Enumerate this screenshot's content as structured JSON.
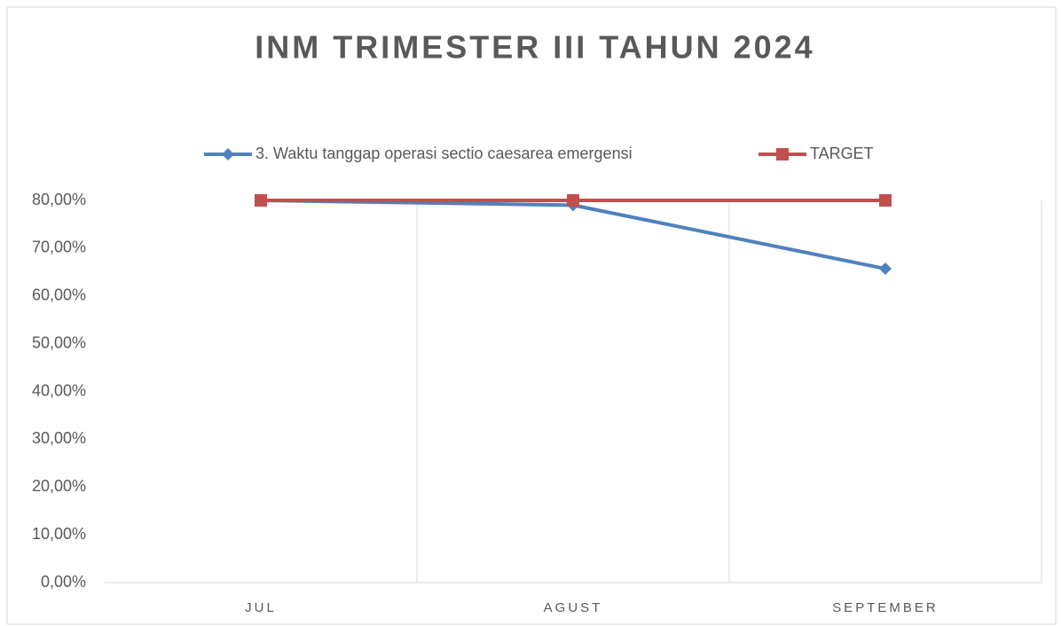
{
  "chart_data": {
    "type": "line",
    "title": "INM TRIMESTER III TAHUN 2024",
    "categories": [
      "JUL",
      "AGUST",
      "SEPTEMBER"
    ],
    "series": [
      {
        "name": "3. Waktu tanggap operasi sectio caesarea emergensi",
        "color": "#4f81bd",
        "marker": "diamond",
        "values": [
          80,
          79,
          65.7
        ]
      },
      {
        "name": "TARGET",
        "color": "#c0504d",
        "marker": "square",
        "values": [
          80,
          80,
          80
        ]
      }
    ],
    "ylim": [
      0,
      80
    ],
    "yticks": [
      {
        "value": 0,
        "label": "0,00%"
      },
      {
        "value": 10,
        "label": "10,00%"
      },
      {
        "value": 20,
        "label": "20,00%"
      },
      {
        "value": 30,
        "label": "30,00%"
      },
      {
        "value": 40,
        "label": "40,00%"
      },
      {
        "value": 50,
        "label": "50,00%"
      },
      {
        "value": 60,
        "label": "60,00%"
      },
      {
        "value": 70,
        "label": "70,00%"
      },
      {
        "value": 80,
        "label": "80,00%"
      }
    ],
    "legend": "top",
    "grid": true
  }
}
